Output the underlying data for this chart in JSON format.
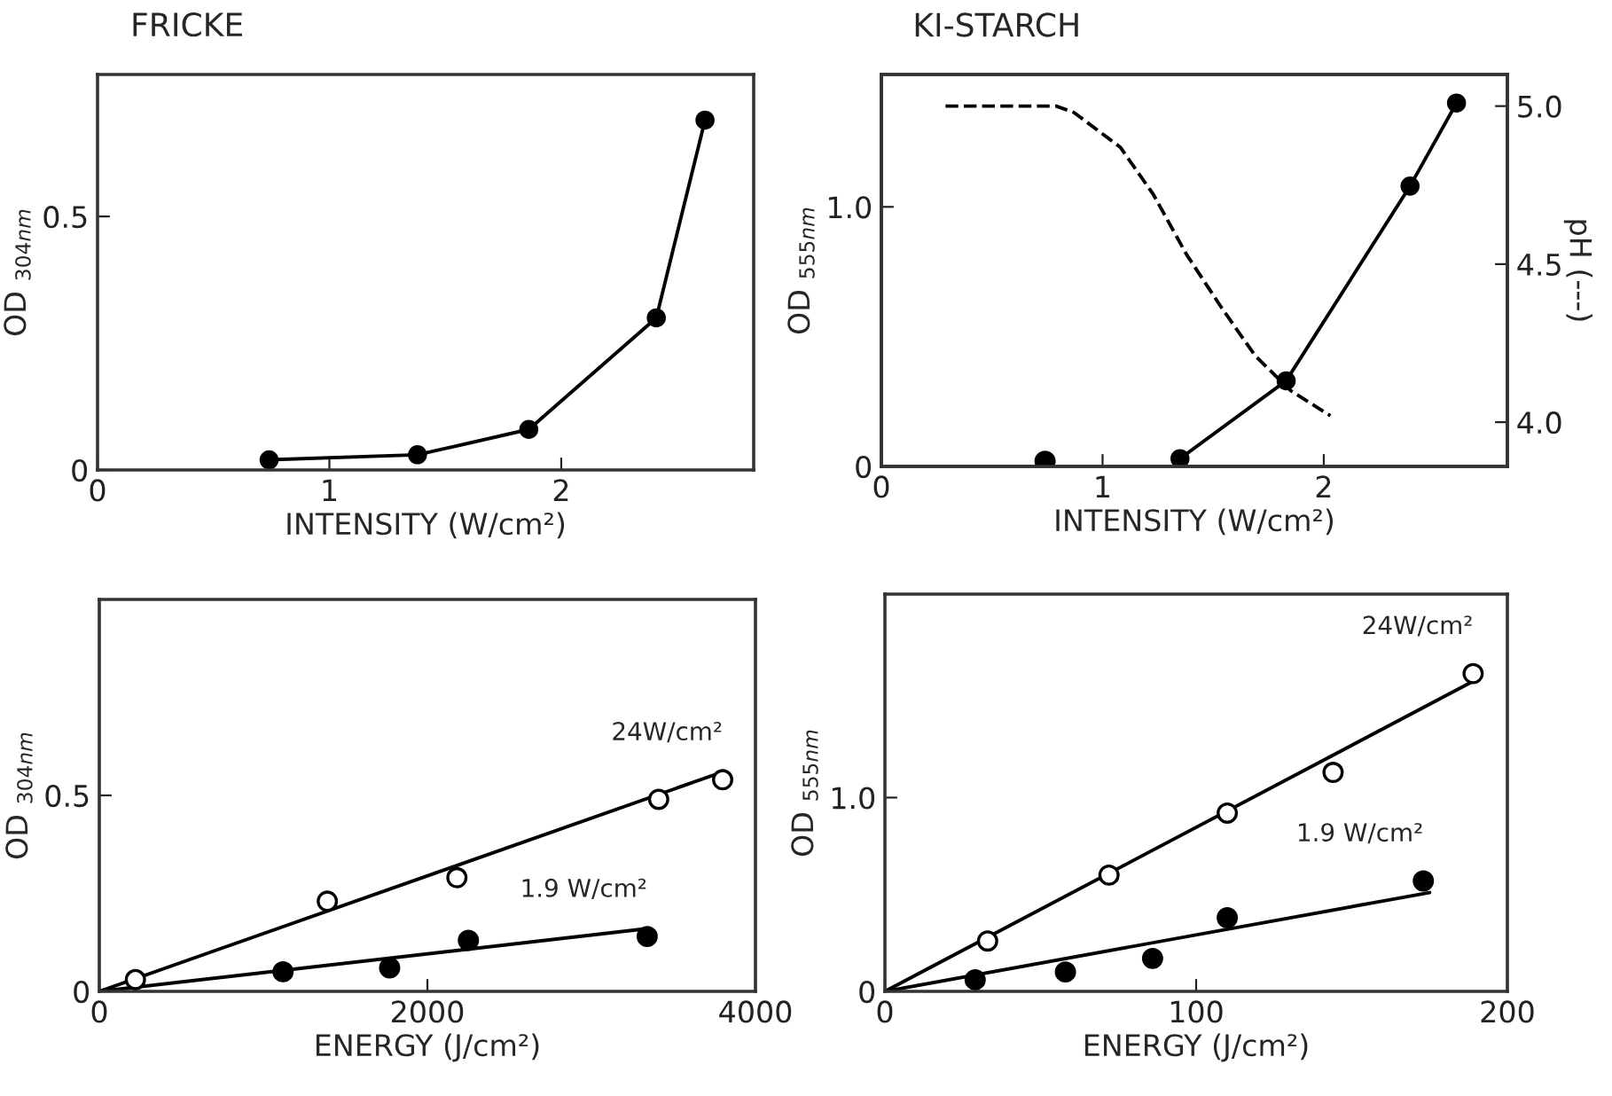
{
  "chart_data": [
    {
      "type": "line",
      "title": "FRICKE",
      "xlabel": "INTENSITY (W/cm²)",
      "ylabel": "OD $_{304nm}$",
      "xlim": [
        0,
        2.83
      ],
      "ylim": [
        0,
        0.78
      ],
      "xticks": [
        0,
        1,
        2
      ],
      "yticks": [
        0,
        0.5
      ],
      "grid": false,
      "series": [
        {
          "marker": "circle",
          "color": "#000000",
          "x": [
            0.74,
            1.38,
            1.86,
            2.41,
            2.62
          ],
          "values": [
            0.02,
            0.03,
            0.08,
            0.3,
            0.69
          ]
        }
      ]
    },
    {
      "type": "line",
      "title": "KI-STARCH",
      "xlabel": "INTENSITY (W/cm²)",
      "ylabel": "OD $_{555nm}$",
      "y2label": "pH (---)",
      "xlim": [
        0,
        2.83
      ],
      "ylim": [
        0,
        1.51
      ],
      "y2lim": [
        3.86,
        5.1
      ],
      "xticks": [
        0,
        1,
        2
      ],
      "yticks": [
        0,
        {
          "value": 1.0,
          "label": "1.0"
        }
      ],
      "y2ticks": [
        {
          "value": 4.0,
          "label": "4.0"
        },
        {
          "value": 4.5,
          "label": "4.5"
        },
        {
          "value": 5.0,
          "label": "5.0"
        }
      ],
      "grid": false,
      "series": [
        {
          "type": "scatter",
          "marker": "circle",
          "color": "#000000",
          "x": [
            0.74
          ],
          "values": [
            0.02
          ]
        },
        {
          "marker": "circle",
          "color": "#000000",
          "x": [
            1.35,
            1.83,
            2.39,
            2.6
          ],
          "values": [
            0.03,
            0.33,
            1.08,
            1.4
          ]
        },
        {
          "axis": "y2",
          "marker": "none",
          "line_style": "dashed",
          "color": "#000000",
          "x": [
            0.29,
            0.79,
            0.87,
            1.08,
            1.23,
            1.38,
            1.54,
            1.69,
            1.85,
            2.03
          ],
          "values": [
            5.0,
            5.0,
            4.98,
            4.87,
            4.72,
            4.53,
            4.36,
            4.21,
            4.1,
            4.02
          ]
        }
      ]
    },
    {
      "type": "scatter",
      "xlabel": "ENERGY (J/cm²)",
      "ylabel": "OD $_{304nm}$",
      "xlim": [
        0,
        4000
      ],
      "ylim": [
        0,
        1.0
      ],
      "xticks": [
        0,
        2000,
        4000
      ],
      "yticks": [
        0,
        0.5
      ],
      "grid": false,
      "series": [
        {
          "name": "24W/cm²",
          "marker": "circle",
          "color": "#ffffff",
          "x": [
            220,
            1390,
            2180,
            3410,
            3800
          ],
          "values": [
            0.03,
            0.23,
            0.29,
            0.49,
            0.54
          ]
        },
        {
          "type": "line",
          "marker": "none",
          "color": "#000000",
          "x": [
            0,
            3800
          ],
          "values": [
            0,
            0.56
          ]
        },
        {
          "name": "1.9 W/cm²",
          "marker": "circle",
          "color": "#000000",
          "x": [
            1120,
            1770,
            2250,
            3340
          ],
          "values": [
            0.05,
            0.06,
            0.13,
            0.14
          ]
        },
        {
          "type": "line",
          "marker": "none",
          "color": "#000000",
          "x": [
            0,
            3340
          ],
          "values": [
            0,
            0.16
          ]
        }
      ]
    },
    {
      "type": "scatter",
      "xlabel": "ENERGY (J/cm²)",
      "ylabel": "OD $_{555nm}$",
      "xlim": [
        0,
        200
      ],
      "ylim": [
        0,
        2.05
      ],
      "xticks": [
        0,
        100,
        200
      ],
      "yticks": [
        0,
        {
          "value": 1.0,
          "label": "1.0"
        }
      ],
      "grid": false,
      "series": [
        {
          "name": "24W/cm²",
          "marker": "circle",
          "color": "#ffffff",
          "x": [
            33,
            72,
            110,
            144,
            189
          ],
          "values": [
            0.26,
            0.6,
            0.92,
            1.13,
            1.64
          ]
        },
        {
          "type": "line",
          "marker": "none",
          "color": "#000000",
          "x": [
            0,
            189
          ],
          "values": [
            0,
            1.6
          ]
        },
        {
          "name": "1.9 W/cm²",
          "marker": "circle",
          "color": "#000000",
          "x": [
            29,
            58,
            86,
            110,
            173
          ],
          "values": [
            0.06,
            0.1,
            0.17,
            0.38,
            0.57
          ]
        },
        {
          "type": "line",
          "marker": "none",
          "color": "#000000",
          "x": [
            0,
            175
          ],
          "values": [
            0,
            0.51
          ]
        }
      ]
    }
  ]
}
